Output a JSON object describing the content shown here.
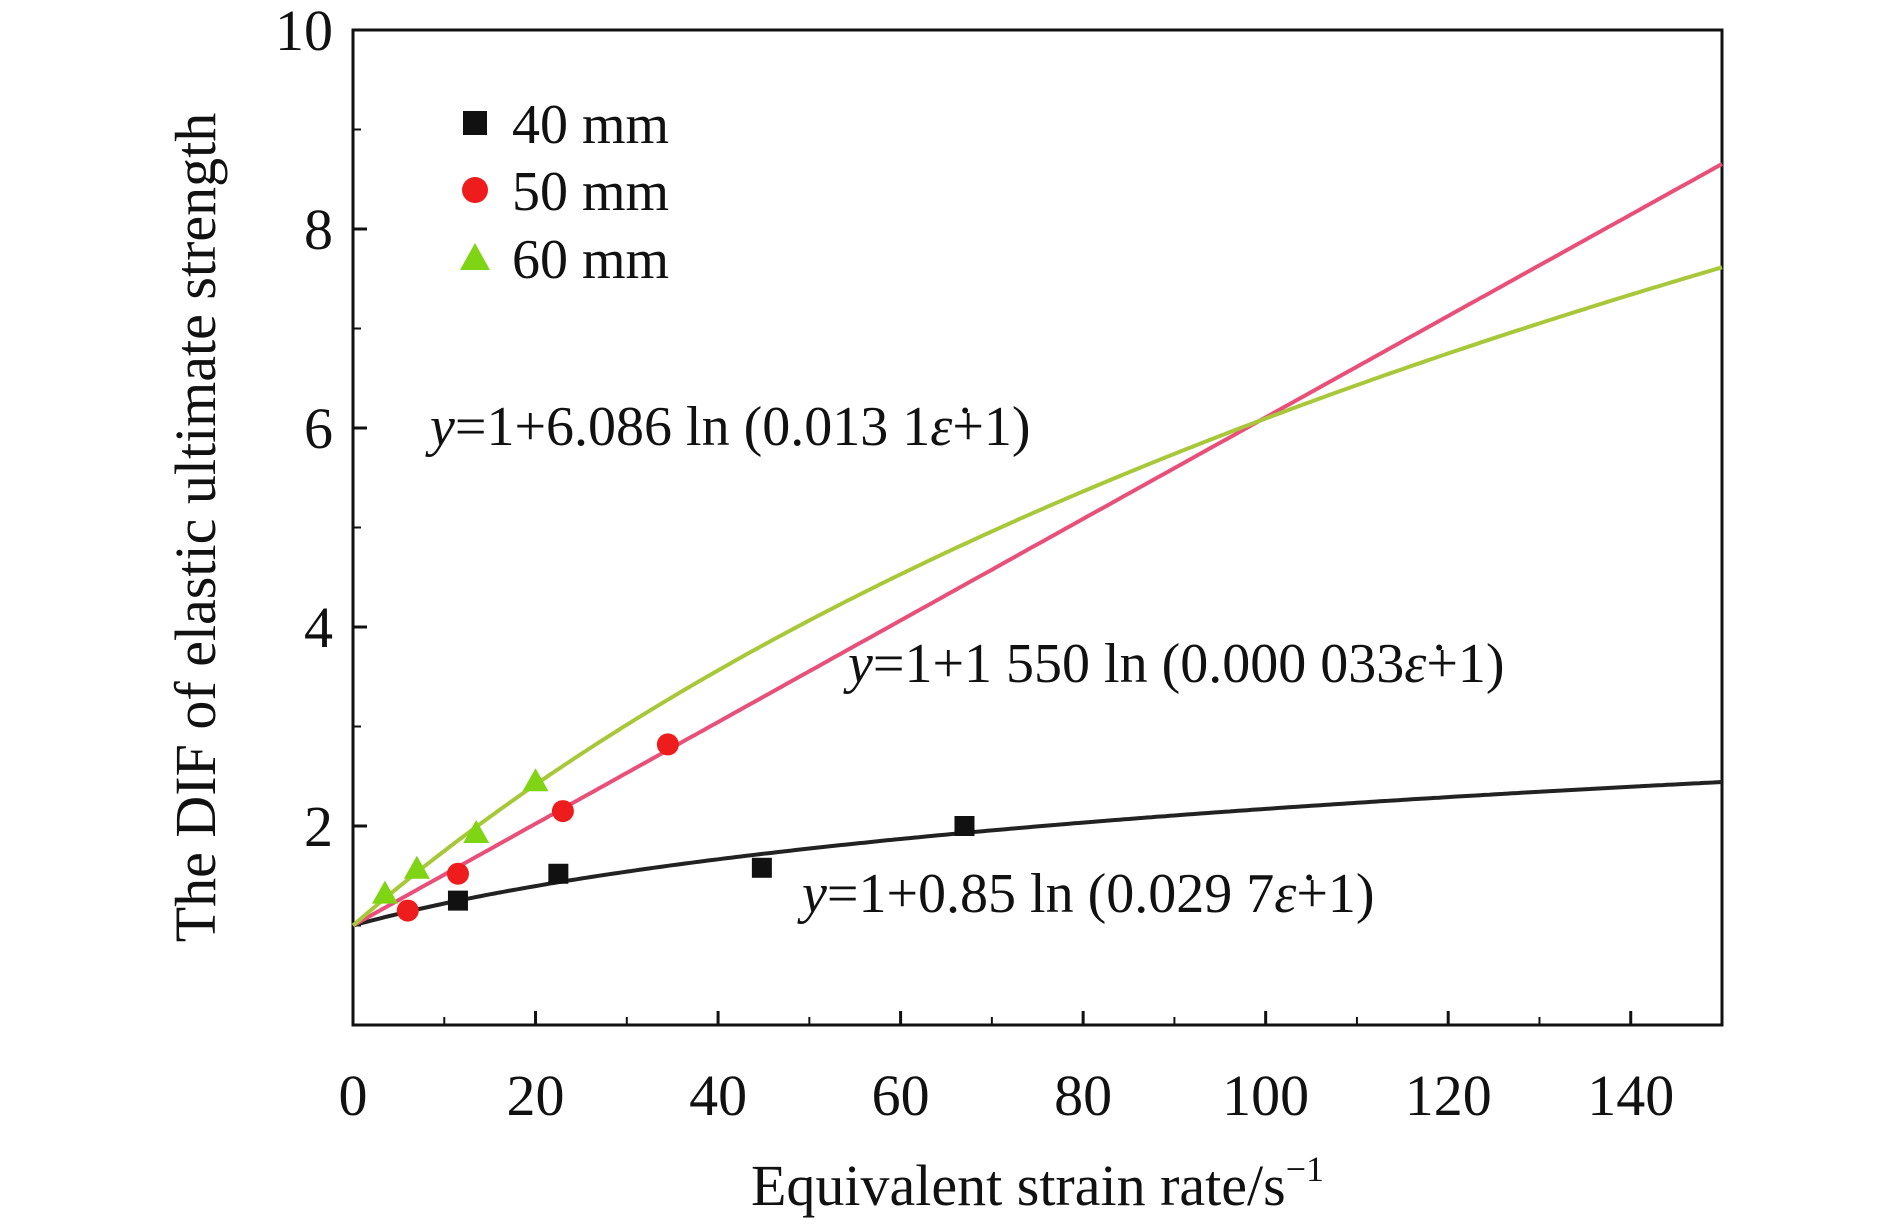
{
  "chart_data": {
    "type": "scatter",
    "title": "",
    "xlabel": "Equivalent strain rate/s",
    "xlabel_superscript": "−1",
    "ylabel": "The DIF of elastic ultimate strength",
    "xlim": [
      0,
      150
    ],
    "ylim": [
      0,
      10
    ],
    "xticks": [
      "0",
      "20",
      "40",
      "60",
      "80",
      "100",
      "120",
      "140"
    ],
    "yticks": [
      "2",
      "4",
      "6",
      "8",
      "10"
    ],
    "grid": false,
    "legend_position": "top-left",
    "series": [
      {
        "name": "40 mm",
        "marker": "square",
        "color": "#111111",
        "fit_color": "#222222",
        "x": [
          11.5,
          22.5,
          44.8,
          67.0
        ],
        "y": [
          1.25,
          1.52,
          1.58,
          2.0
        ],
        "fit": {
          "a": 0.85,
          "b": 0.0297
        },
        "equation": {
          "var": "y",
          "main": "=1+0.85 ln (0.029 7",
          "rate": "ε̇",
          "tail": "+1)"
        }
      },
      {
        "name": "50 mm",
        "marker": "circle",
        "color": "#ee1c1c",
        "fit_color": "#e8507a",
        "x": [
          6.0,
          11.5,
          23.0,
          34.5
        ],
        "y": [
          1.15,
          1.52,
          2.15,
          2.82
        ],
        "fit": {
          "a": 1550,
          "b": 3.3e-05
        },
        "equation": {
          "var": "y",
          "main": "=1+1 550 ln (0.000 033",
          "rate": "ε̇",
          "tail": "+1)"
        }
      },
      {
        "name": "60 mm",
        "marker": "triangle",
        "color": "#7fd414",
        "fit_color": "#a8c83a",
        "x": [
          3.5,
          7.0,
          13.5,
          20.0
        ],
        "y": [
          1.32,
          1.57,
          1.93,
          2.45
        ],
        "fit": {
          "a": 6.086,
          "b": 0.0131
        },
        "equation": {
          "var": "y",
          "main": "=1+6.086 ln (0.013 1",
          "rate": "ε̇",
          "tail": "+1)"
        }
      }
    ]
  }
}
